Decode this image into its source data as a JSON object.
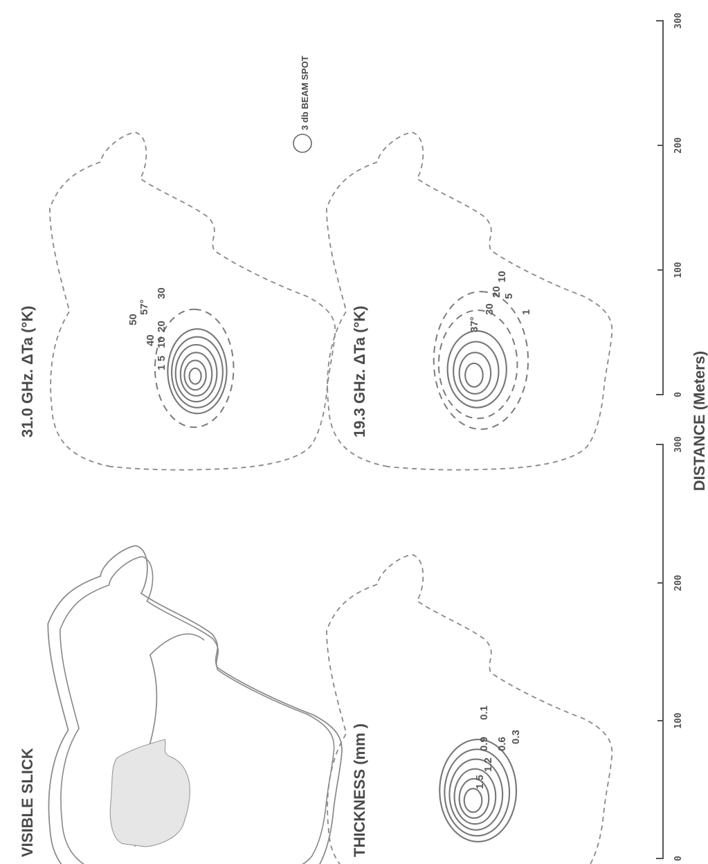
{
  "panels": {
    "visible": {
      "title": "VISIBLE SLICK"
    },
    "thickness": {
      "title": "THICKNESS (mm )",
      "contour_labels": [
        "1.5",
        "1.2",
        "0.9",
        "0.6",
        "0.3",
        "0.1"
      ]
    },
    "ghz31": {
      "title": "31.0 GHz. ΔTa (°K)",
      "contour_labels": [
        "40",
        "50",
        "57°",
        "30",
        "20",
        "10",
        "5",
        "1"
      ]
    },
    "ghz19": {
      "title": "19.3 GHz. ΔTa (°K)",
      "contour_labels": [
        "37°",
        "30",
        "20",
        "10",
        "5",
        "1"
      ]
    }
  },
  "beam_spot": {
    "label": "3 db BEAM SPOT"
  },
  "scales": [
    {
      "ticks": [
        "0",
        "100",
        "200",
        "300"
      ]
    },
    {
      "ticks": [
        "0",
        "100",
        "200",
        "300"
      ]
    }
  ],
  "axis_title": "DISTANCE (Meters)",
  "colors": {
    "line": "#8a8a8a",
    "text": "#4a4a4a",
    "slick_fill": "#e6e6e6"
  }
}
